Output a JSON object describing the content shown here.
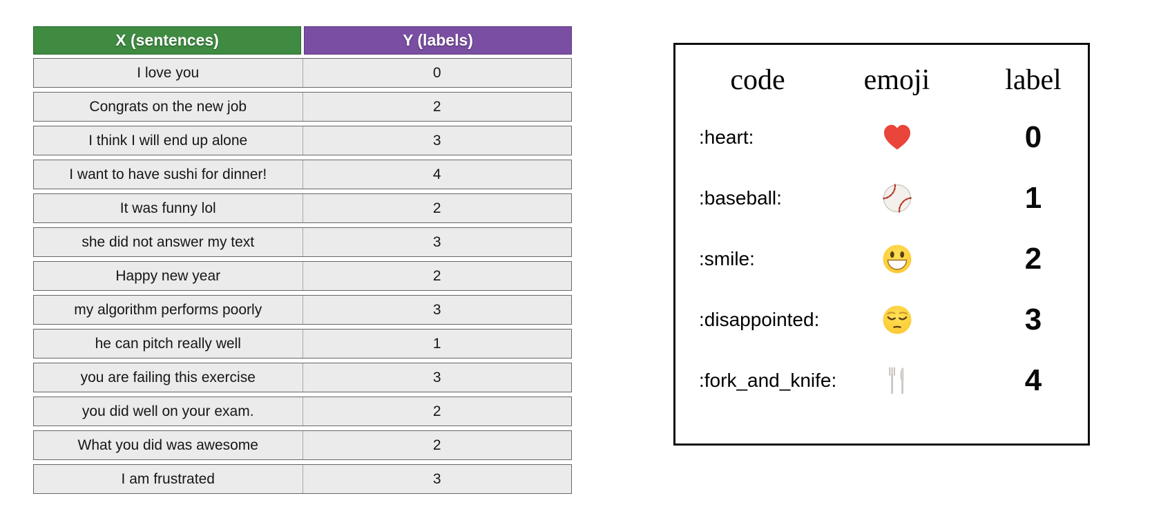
{
  "dataset_table": {
    "columns": [
      {
        "label": "X (sentences)",
        "color": "#3e8b41"
      },
      {
        "label": "Y (labels)",
        "color": "#7a4fa3"
      }
    ],
    "rows": [
      {
        "sentence": "I love you",
        "label": "0"
      },
      {
        "sentence": "Congrats on the new job",
        "label": "2"
      },
      {
        "sentence": "I think I will end up alone",
        "label": "3"
      },
      {
        "sentence": "I want to have sushi for dinner!",
        "label": "4"
      },
      {
        "sentence": "It was funny lol",
        "label": "2"
      },
      {
        "sentence": "she did not answer my text",
        "label": "3"
      },
      {
        "sentence": "Happy new year",
        "label": "2"
      },
      {
        "sentence": "my algorithm performs poorly",
        "label": "3"
      },
      {
        "sentence": "he can pitch really well",
        "label": "1"
      },
      {
        "sentence": "you are failing this exercise",
        "label": "3"
      },
      {
        "sentence": "you did well on your exam.",
        "label": "2"
      },
      {
        "sentence": "What you did was awesome",
        "label": "2"
      },
      {
        "sentence": "I am frustrated",
        "label": "3"
      }
    ]
  },
  "emoji_table": {
    "headers": {
      "code": "code",
      "emoji": "emoji",
      "label": "label"
    },
    "rows": [
      {
        "code": ":heart:",
        "emoji": "heart",
        "label": "0"
      },
      {
        "code": ":baseball:",
        "emoji": "baseball",
        "label": "1"
      },
      {
        "code": ":smile:",
        "emoji": "smile",
        "label": "2"
      },
      {
        "code": ":disappointed:",
        "emoji": "disappointed",
        "label": "3"
      },
      {
        "code": ":fork_and_knife:",
        "emoji": "fork_and_knife",
        "label": "4"
      }
    ]
  }
}
